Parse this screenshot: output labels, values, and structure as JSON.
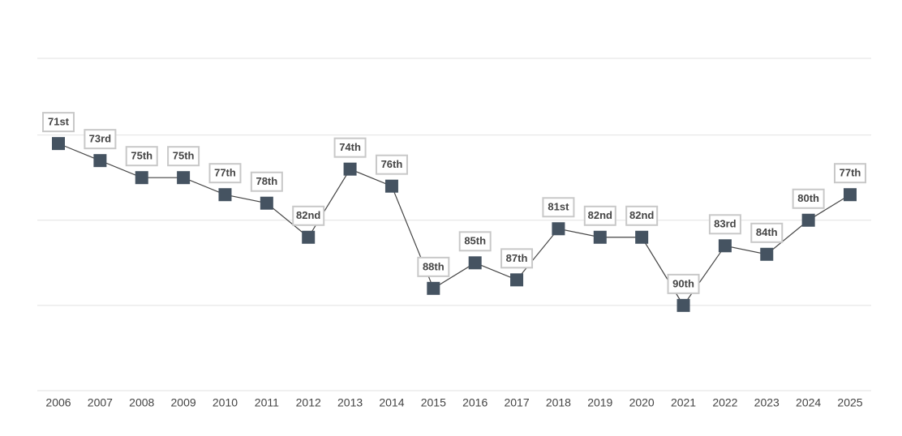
{
  "chart_data": {
    "type": "line",
    "categories": [
      "2006",
      "2007",
      "2008",
      "2009",
      "2010",
      "2011",
      "2012",
      "2013",
      "2014",
      "2015",
      "2016",
      "2017",
      "2018",
      "2019",
      "2020",
      "2021",
      "2022",
      "2023",
      "2024",
      "2025"
    ],
    "values": [
      71,
      73,
      75,
      75,
      77,
      78,
      82,
      74,
      76,
      88,
      85,
      87,
      81,
      82,
      82,
      90,
      83,
      84,
      80,
      77
    ],
    "value_labels": [
      "71st",
      "73rd",
      "75th",
      "75th",
      "77th",
      "78th",
      "82nd",
      "74th",
      "76th",
      "88th",
      "85th",
      "87th",
      "81st",
      "82nd",
      "82nd",
      "90th",
      "83rd",
      "84th",
      "80th",
      "77th"
    ],
    "color": "#455361",
    "ylim": [
      100,
      61
    ],
    "yticks": [
      70,
      80,
      90,
      100
    ],
    "grid": true
  }
}
